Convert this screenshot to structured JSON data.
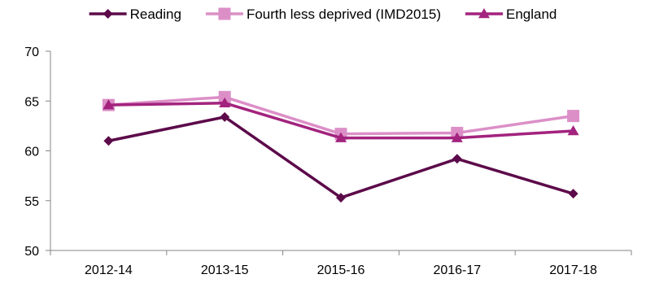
{
  "chart_data": {
    "type": "line",
    "title": "",
    "xlabel": "",
    "ylabel": "",
    "categories": [
      "2012-14",
      "2013-15",
      "2015-16",
      "2016-17",
      "2017-18"
    ],
    "ylim": [
      50,
      70
    ],
    "yticks": [
      50,
      55,
      60,
      65,
      70
    ],
    "grid": false,
    "legend": "top",
    "series": [
      {
        "name": "Reading",
        "values": [
          61.0,
          63.4,
          55.3,
          59.2,
          55.7
        ],
        "color": "#5c0a4a",
        "marker": "diamond"
      },
      {
        "name": "Fourth less deprived (IMD2015)",
        "values": [
          64.6,
          65.4,
          61.7,
          61.8,
          63.5
        ],
        "color": "#dc8fc7",
        "marker": "square"
      },
      {
        "name": "England",
        "values": [
          64.6,
          64.8,
          61.3,
          61.3,
          62.0
        ],
        "color": "#a3237e",
        "marker": "triangle"
      }
    ]
  }
}
